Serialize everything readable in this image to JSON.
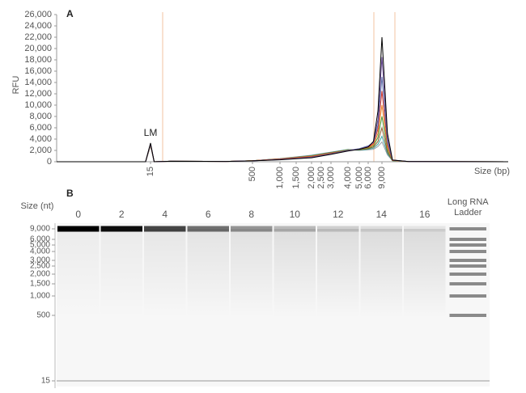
{
  "chart_data": [
    {
      "type": "line",
      "label": "A",
      "ylabel": "RFU",
      "xlabel": "Size (bp)",
      "annotation": "LM",
      "x": [
        1,
        13,
        15,
        17,
        30,
        200,
        500,
        1000,
        2000,
        3000,
        4000,
        5000,
        6000,
        7000,
        8000,
        9000,
        10000,
        11000,
        15000,
        100000
      ],
      "series": [
        {
          "color": "#000000",
          "values": [
            0,
            0,
            3300,
            0,
            80,
            60,
            150,
            350,
            700,
            1300,
            1900,
            2200,
            2600,
            3600,
            9000,
            22000,
            5000,
            300,
            50,
            0
          ]
        },
        {
          "color": "#6b4c9a",
          "values": [
            0,
            0,
            3200,
            0,
            80,
            60,
            150,
            380,
            750,
            1350,
            1950,
            2250,
            2700,
            3500,
            7500,
            18500,
            4200,
            300,
            50,
            0
          ]
        },
        {
          "color": "#5b6ea8",
          "values": [
            0,
            0,
            3100,
            0,
            80,
            60,
            160,
            400,
            800,
            1400,
            2000,
            2300,
            2800,
            3400,
            6500,
            15000,
            3500,
            300,
            50,
            0
          ]
        },
        {
          "color": "#d9382c",
          "values": [
            0,
            0,
            3100,
            0,
            80,
            60,
            170,
            450,
            900,
            1450,
            2000,
            2250,
            2600,
            3200,
            5800,
            12500,
            3000,
            250,
            50,
            0
          ]
        },
        {
          "color": "#e8892b",
          "values": [
            0,
            0,
            3000,
            0,
            80,
            60,
            170,
            480,
            950,
            1500,
            2050,
            2200,
            2500,
            3000,
            5000,
            10000,
            2500,
            250,
            50,
            0
          ]
        },
        {
          "color": "#4f9a3c",
          "values": [
            0,
            0,
            3000,
            0,
            80,
            60,
            180,
            500,
            1000,
            1550,
            2100,
            2150,
            2400,
            2800,
            4300,
            8000,
            2100,
            200,
            50,
            0
          ]
        },
        {
          "color": "#8b5a2b",
          "values": [
            0,
            0,
            2900,
            0,
            80,
            60,
            180,
            520,
            1050,
            1600,
            2100,
            2100,
            2300,
            2600,
            3600,
            6000,
            1700,
            200,
            50,
            0
          ]
        },
        {
          "color": "#3aa3a0",
          "values": [
            0,
            0,
            2900,
            0,
            80,
            60,
            190,
            540,
            1100,
            1650,
            2150,
            2050,
            2200,
            2400,
            3100,
            4500,
            1400,
            200,
            50,
            0
          ]
        },
        {
          "color": "#9aa0a8",
          "values": [
            0,
            0,
            2800,
            0,
            80,
            60,
            190,
            560,
            1150,
            1700,
            2150,
            2000,
            2100,
            2200,
            2700,
            3500,
            1200,
            200,
            50,
            0
          ]
        }
      ],
      "xlim": [
        1,
        100000
      ],
      "xticks": [
        15,
        500,
        {
          "value": 1000,
          "label": "1,000"
        },
        {
          "value": 1500,
          "label": "1,500"
        },
        {
          "value": 2000,
          "label": "2,000"
        },
        {
          "value": 2500,
          "label": "2,500"
        },
        {
          "value": 3000,
          "label": "3,000"
        },
        {
          "value": 4000,
          "label": "4,000"
        },
        {
          "value": 5000,
          "label": "5,000"
        },
        {
          "value": 6000,
          "label": "6,000"
        },
        {
          "value": 9000,
          "label": "9,000"
        }
      ],
      "ylim": [
        0,
        26000
      ],
      "yticks": [
        0,
        {
          "value": 2000,
          "label": "2,000"
        },
        {
          "value": 4000,
          "label": "4,000"
        },
        {
          "value": 6000,
          "label": "6,000"
        },
        {
          "value": 8000,
          "label": "8,000"
        },
        {
          "value": 10000,
          "label": "10,000"
        },
        {
          "value": 12000,
          "label": "12,000"
        },
        {
          "value": 14000,
          "label": "14,000"
        },
        {
          "value": 16000,
          "label": "16,000"
        },
        {
          "value": 18000,
          "label": "18,000"
        },
        {
          "value": 20000,
          "label": "20,000"
        },
        {
          "value": 22000,
          "label": "22,000"
        },
        {
          "value": 24000,
          "label": "24,000"
        },
        {
          "value": 26000,
          "label": "26,000"
        }
      ]
    },
    {
      "type": "gel",
      "label": "B",
      "ylabel": "Size (nt)",
      "categories": [
        "0",
        "2",
        "4",
        "6",
        "8",
        "10",
        "12",
        "14",
        "16",
        "Long RNA Ladder"
      ],
      "values": [
        1,
        0.95,
        0.72,
        0.55,
        0.4,
        0.25,
        0.16,
        0.1,
        0.07,
        null
      ],
      "ylim": [
        12,
        12000
      ],
      "yticks": [
        {
          "value": 9000,
          "label": "9,000"
        },
        {
          "value": 6000,
          "label": "6,000"
        },
        {
          "value": 5000,
          "label": "5,000"
        },
        {
          "value": 4000,
          "label": "4,000"
        },
        {
          "value": 3000,
          "label": "3,000"
        },
        {
          "value": 2500,
          "label": "2,500"
        },
        {
          "value": 2000,
          "label": "2,000"
        },
        {
          "value": 1500,
          "label": "1,500"
        },
        {
          "value": 1000,
          "label": "1,000"
        },
        500,
        15
      ]
    }
  ]
}
